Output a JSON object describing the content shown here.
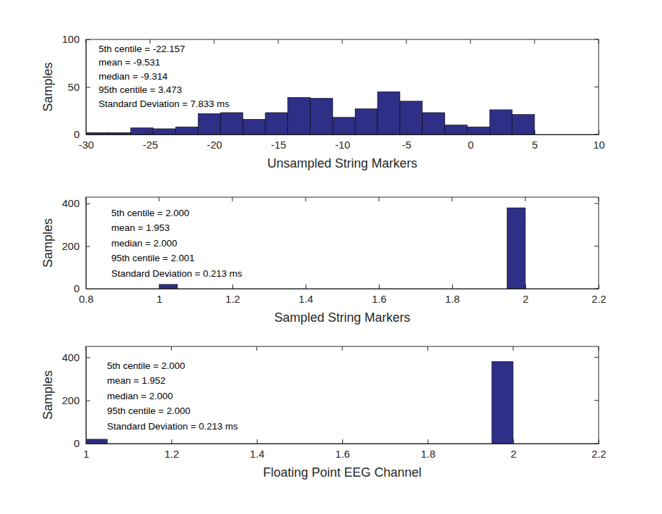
{
  "chart_data": [
    {
      "type": "histogram",
      "x_label": "Unsampled String Markers",
      "y_label": "Samples",
      "annotations": [
        "5th centile = -22.157",
        "mean = -9.531",
        "median = -9.314",
        "95th centile = 3.473",
        "Standard Deviation = 7.833 ms"
      ],
      "bins": [
        -30,
        -28.25,
        -26.5,
        -24.75,
        -23,
        -21.25,
        -19.5,
        -17.75,
        -16,
        -14.25,
        -12.5,
        -10.75,
        -9,
        -7.25,
        -5.5,
        -3.75,
        -2,
        -0.25,
        1.5,
        3.25,
        5
      ],
      "values": [
        2,
        2,
        7,
        6,
        8,
        22,
        23,
        16,
        23,
        39,
        38,
        18,
        27,
        45,
        35,
        23,
        10,
        8,
        26,
        21
      ],
      "color": "#2f2f87",
      "xlim": [
        -30,
        10
      ],
      "xticks": [
        -30,
        -25,
        -20,
        -15,
        -10,
        -5,
        0,
        5,
        10
      ],
      "ylim": [
        0,
        100
      ],
      "yticks": [
        0,
        50,
        100
      ]
    },
    {
      "type": "histogram",
      "x_label": "Sampled String Markers",
      "y_label": "Samples",
      "annotations": [
        "5th centile = 2.000",
        "mean = 1.953",
        "median = 2.000",
        "95th centile = 2.001",
        "Standard Deviation = 0.213 ms"
      ],
      "bins": [
        1,
        1.05,
        1.1,
        1.15,
        1.2,
        1.25,
        1.3,
        1.35,
        1.4,
        1.45,
        1.5,
        1.55,
        1.6,
        1.65,
        1.7,
        1.75,
        1.8,
        1.85,
        1.9,
        1.95,
        2
      ],
      "values": [
        20,
        0,
        0,
        0,
        0,
        0,
        0,
        0,
        0,
        0,
        0,
        0,
        0,
        0,
        0,
        0,
        0,
        0,
        0,
        380
      ],
      "color": "#2f2f87",
      "xlim": [
        0.8,
        2.2
      ],
      "xticks": [
        0.8,
        1,
        1.2,
        1.4,
        1.6,
        1.8,
        2,
        2.2
      ],
      "ylim": [
        0,
        430
      ],
      "yticks": [
        0,
        200,
        400
      ]
    },
    {
      "type": "histogram",
      "x_label": "Floating Point EEG Channel",
      "y_label": "Samples",
      "annotations": [
        "5th centile = 2.000",
        "mean = 1.952",
        "median = 2.000",
        "95th centile = 2.000",
        "Standard Deviation = 0.213 ms"
      ],
      "bins": [
        1,
        1.05,
        1.1,
        1.15,
        1.2,
        1.25,
        1.3,
        1.35,
        1.4,
        1.45,
        1.5,
        1.55,
        1.6,
        1.65,
        1.7,
        1.75,
        1.8,
        1.85,
        1.9,
        1.95,
        2
      ],
      "values": [
        20,
        0,
        0,
        0,
        0,
        0,
        0,
        0,
        0,
        0,
        0,
        0,
        0,
        0,
        0,
        0,
        0,
        0,
        0,
        380
      ],
      "color": "#2f2f87",
      "xlim": [
        1,
        2.2
      ],
      "xticks": [
        1,
        1.2,
        1.4,
        1.6,
        1.8,
        2,
        2.2
      ],
      "ylim": [
        0,
        450
      ],
      "yticks": [
        0,
        200,
        400
      ]
    }
  ]
}
